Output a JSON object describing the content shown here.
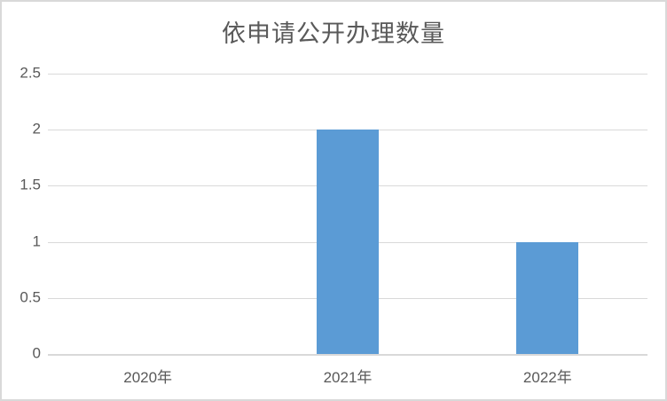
{
  "chart_data": {
    "type": "bar",
    "title": "依申请公开办理数量",
    "categories": [
      "2020年",
      "2021年",
      "2022年"
    ],
    "values": [
      0,
      2,
      1
    ],
    "xlabel": "",
    "ylabel": "",
    "ylim": [
      0,
      2.5
    ],
    "yticks": [
      0,
      0.5,
      1,
      1.5,
      2,
      2.5
    ],
    "grid": true,
    "legend": false,
    "bar_color": "#5b9bd5",
    "gridline_color": "#d9d9d9",
    "axis_text_color": "#595959",
    "title_color": "#595959",
    "background_color": "#ffffff",
    "border_color": "#d9d9d9"
  }
}
